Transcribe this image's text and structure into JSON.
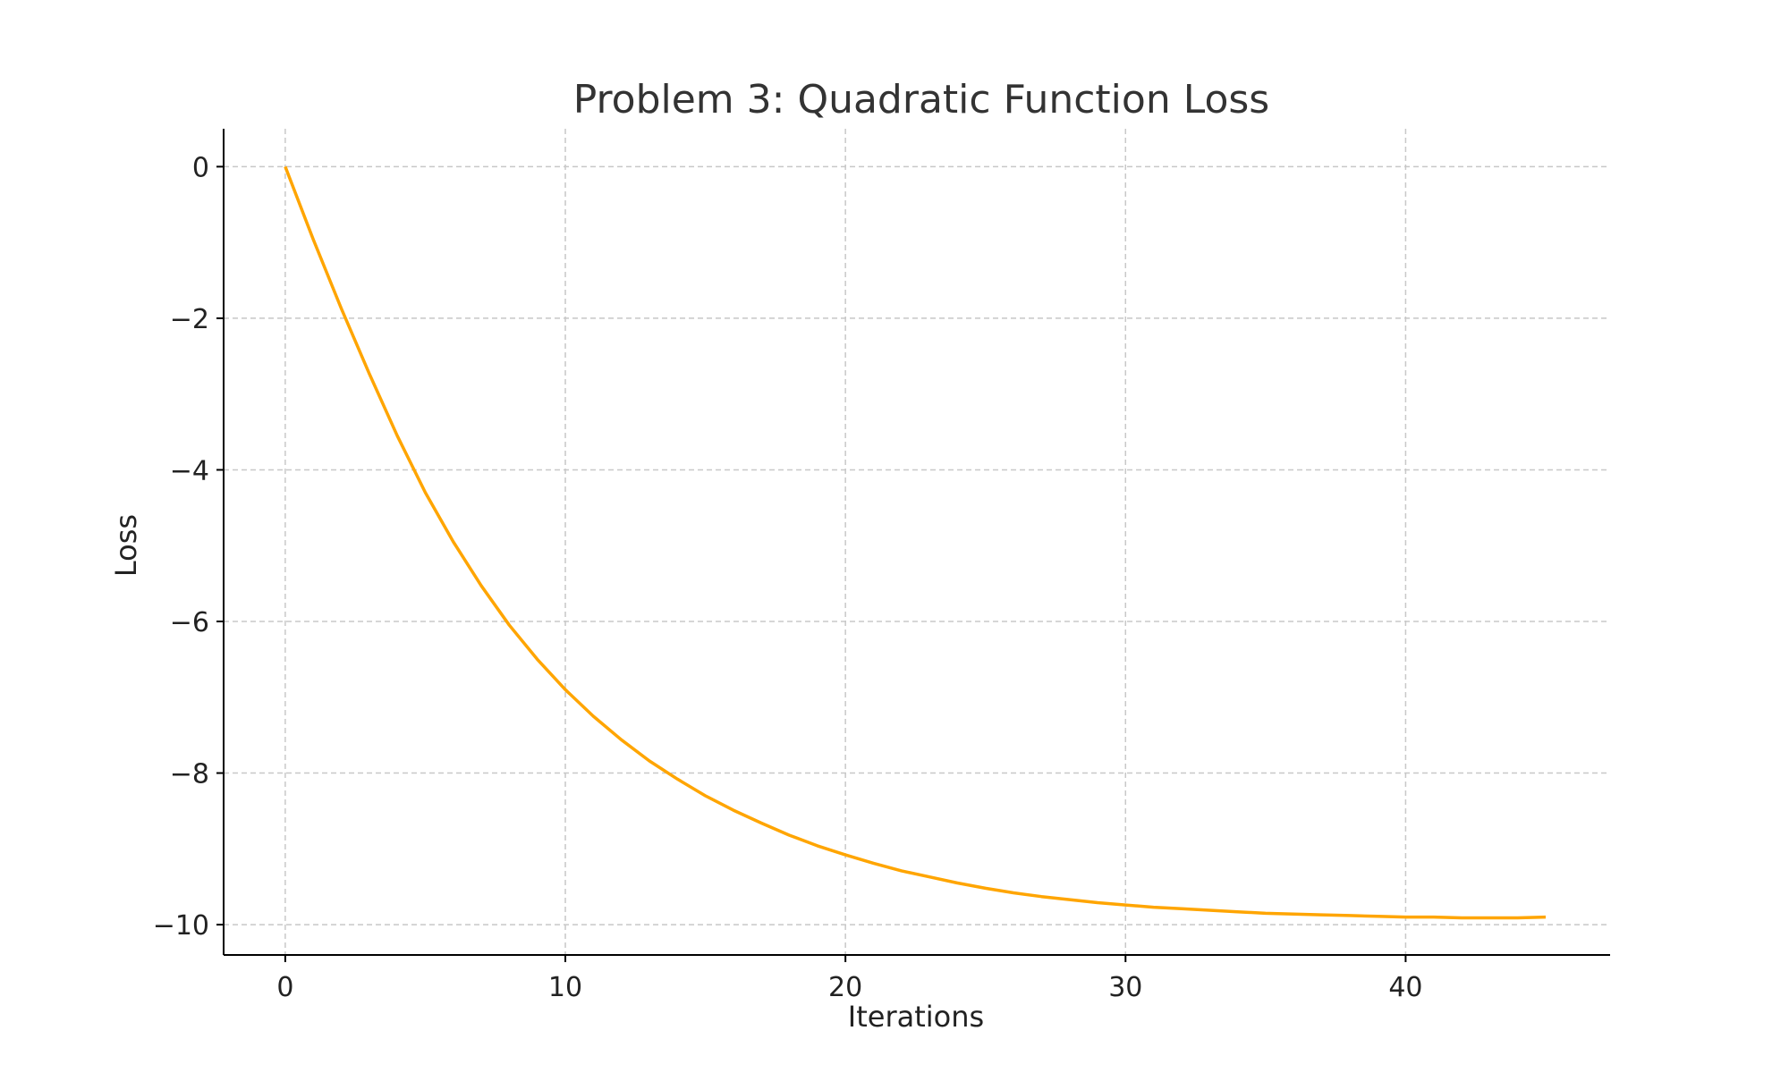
{
  "chart_data": {
    "type": "line",
    "title": "Problem 3: Quadratic Function Loss",
    "xlabel": "Iterations",
    "ylabel": "Loss",
    "xlim": [
      -2.2,
      47.3
    ],
    "ylim": [
      -10.4,
      0.5
    ],
    "xticks": [
      0,
      10,
      20,
      30,
      40
    ],
    "yticks": [
      0,
      -2,
      -4,
      -6,
      -8,
      -10
    ],
    "xtick_labels": [
      "0",
      "10",
      "20",
      "30",
      "40"
    ],
    "ytick_labels": [
      "0",
      "−2",
      "−4",
      "−6",
      "−8",
      "−10"
    ],
    "grid": true,
    "series": [
      {
        "color": "#FFA500",
        "x": [
          0,
          1,
          2,
          3,
          4,
          5,
          6,
          7,
          8,
          9,
          10,
          11,
          12,
          13,
          14,
          15,
          16,
          17,
          18,
          19,
          20,
          21,
          22,
          23,
          24,
          25,
          26,
          27,
          28,
          29,
          30,
          31,
          32,
          33,
          34,
          35,
          36,
          37,
          38,
          39,
          40,
          41,
          42,
          43,
          44,
          45
        ],
        "y": [
          0,
          -0.96,
          -1.87,
          -2.73,
          -3.55,
          -4.3,
          -4.95,
          -5.53,
          -6.05,
          -6.5,
          -6.9,
          -7.25,
          -7.56,
          -7.84,
          -8.08,
          -8.3,
          -8.49,
          -8.66,
          -8.82,
          -8.96,
          -9.08,
          -9.19,
          -9.29,
          -9.37,
          -9.45,
          -9.52,
          -9.58,
          -9.63,
          -9.67,
          -9.71,
          -9.74,
          -9.77,
          -9.79,
          -9.81,
          -9.83,
          -9.85,
          -9.86,
          -9.87,
          -9.88,
          -9.89,
          -9.9,
          -9.9,
          -9.91,
          -9.91,
          -9.91,
          -9.9
        ]
      }
    ]
  }
}
